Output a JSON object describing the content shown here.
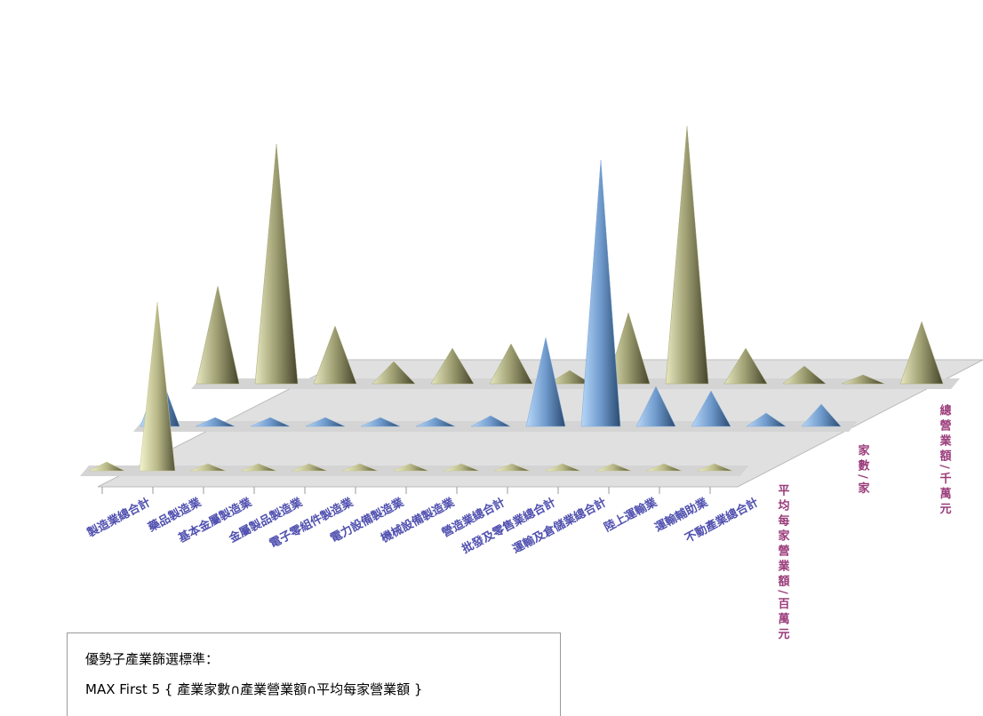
{
  "chart_data": {
    "type": "cone3d",
    "categories": [
      "製造業總合計",
      "藥品製造業",
      "基本金屬製造業",
      "金屬製品製造業",
      "電子零組件製造業",
      "電力設備製造業",
      "機械設備製造業",
      "營造業總合計",
      "批發及零售業總合計",
      "運輸及倉儲業總合計",
      "陸上運輸業",
      "運輸輔助業",
      "不動產業總合計"
    ],
    "series": [
      {
        "name": "平均每家營業額/百萬元",
        "color": "#c8c890",
        "values": [
          10,
          190,
          8,
          8,
          8,
          8,
          8,
          8,
          8,
          8,
          8,
          8,
          8
        ]
      },
      {
        "name": "家數/家",
        "color": "#7ea9d8",
        "values": [
          60,
          10,
          10,
          10,
          10,
          10,
          12,
          100,
          300,
          45,
          40,
          15,
          25
        ]
      },
      {
        "name": "總營業額/千萬元",
        "color": "#a8a878",
        "values": [
          110,
          270,
          65,
          25,
          40,
          45,
          15,
          80,
          290,
          40,
          20,
          10,
          70
        ]
      }
    ],
    "annotations": [
      "優勢子產業篩選標準：",
      "MAX First 5 { 產業家數∩產業營業額∩平均每家營業額 }"
    ]
  }
}
